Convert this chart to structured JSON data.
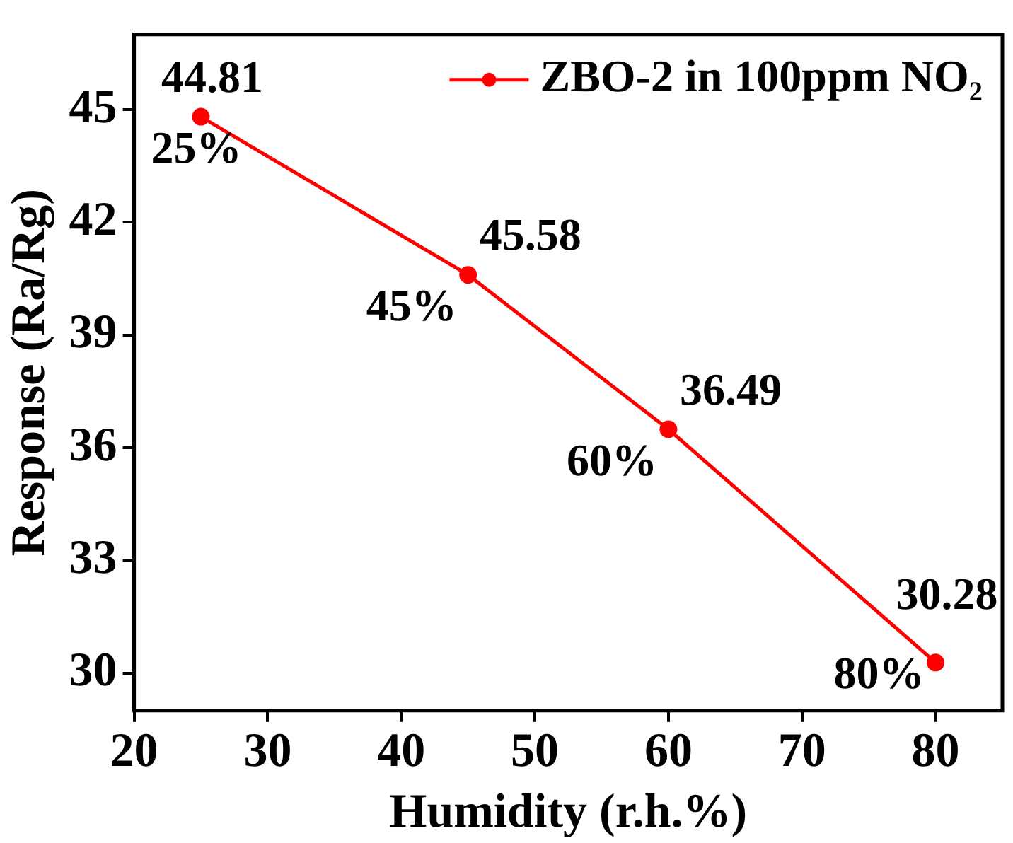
{
  "chart_data": {
    "type": "line",
    "xlabel": "Humidity (r.h.%)",
    "ylabel": "Response (Ra/Rg)",
    "x": [
      25,
      45,
      60,
      80
    ],
    "series": [
      {
        "name": "ZBO-2 in 100ppm NO₂",
        "color": "#ff0000",
        "values": [
          44.81,
          40.6,
          36.49,
          30.28
        ],
        "value_labels": [
          "44.81",
          null,
          "36.49",
          "30.28"
        ]
      }
    ],
    "annotations": [
      {
        "text": "25%",
        "x": 25,
        "y": 44.81
      },
      {
        "text": "45%",
        "x": 45,
        "y": 40.6
      },
      {
        "text": "45.58",
        "x": 45,
        "y": 40.6
      },
      {
        "text": "60%",
        "x": 60,
        "y": 36.49
      },
      {
        "text": "80%",
        "x": 80,
        "y": 30.28
      }
    ],
    "xlim": [
      20,
      85
    ],
    "xticks": [
      20,
      30,
      40,
      50,
      60,
      70,
      80
    ],
    "ylim": [
      29,
      47
    ],
    "yticks": [
      30,
      33,
      36,
      39,
      42,
      45
    ],
    "grid": false,
    "legend": "top right",
    "marker": "circle",
    "line_style": "solid"
  }
}
